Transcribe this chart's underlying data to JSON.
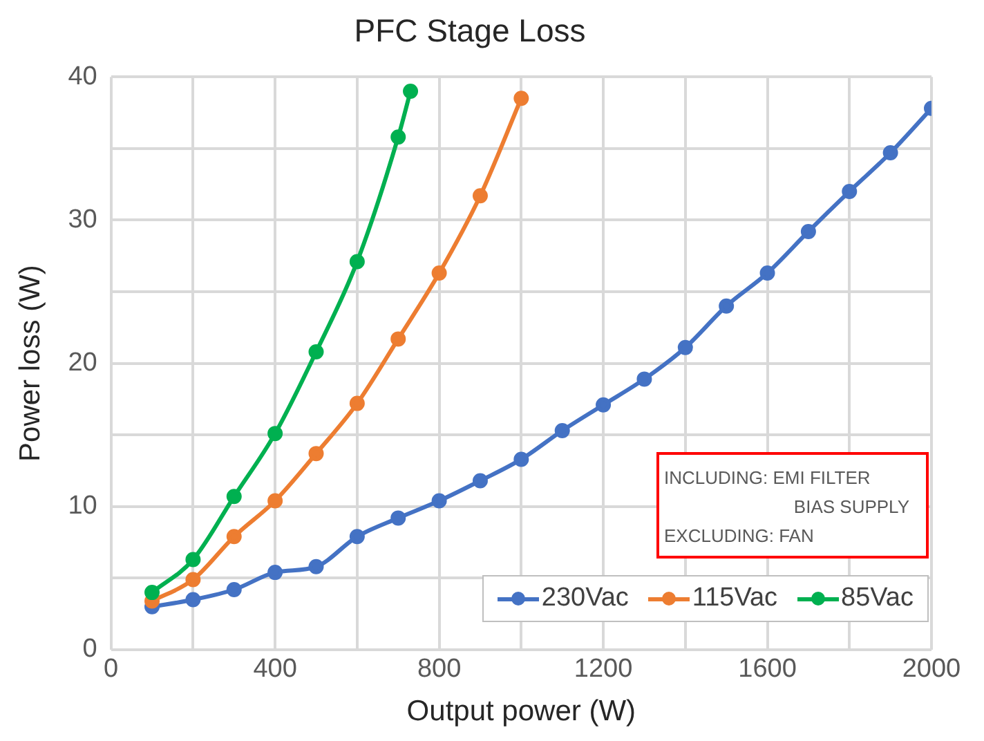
{
  "chart_data": {
    "type": "line",
    "title": "PFC Stage Loss",
    "xlabel": "Output power (W)",
    "ylabel": "Power loss (W)",
    "xlim": [
      0,
      2000
    ],
    "xticks": [
      0,
      {
        "value": 200,
        "label": null
      },
      400,
      {
        "value": 600,
        "label": null
      },
      800,
      {
        "value": 1000,
        "label": null
      },
      1200,
      {
        "value": 1400,
        "label": null
      },
      1600,
      {
        "value": 1800,
        "label": null
      },
      2000
    ],
    "ylim": [
      0,
      40
    ],
    "yticks": [
      0,
      {
        "value": 5,
        "label": null
      },
      10,
      {
        "value": 15,
        "label": null
      },
      20,
      {
        "value": 25,
        "label": null
      },
      30,
      {
        "value": 35,
        "label": null
      },
      40
    ],
    "grid": true,
    "legend": "bottom right",
    "marker": "circle",
    "line_style": "solid",
    "annotations": [
      "INCLUDING: EMI FILTER\n                          BIAS SUPPLY\nEXCLUDING: FAN"
    ],
    "series": [
      {
        "name": "230Vac",
        "color": "#4472c4",
        "x": [
          100,
          200,
          300,
          400,
          500,
          600,
          700,
          800,
          900,
          1000,
          1100,
          1200,
          1300,
          1400,
          1500,
          1600,
          1700,
          1800,
          1900,
          2000
        ],
        "values": [
          3.0,
          3.5,
          4.2,
          5.4,
          5.8,
          7.9,
          9.2,
          10.4,
          11.8,
          13.3,
          15.3,
          17.1,
          18.9,
          21.1,
          24.0,
          26.3,
          29.2,
          32.0,
          34.7,
          37.8
        ]
      },
      {
        "name": "115Vac",
        "color": "#ed7d31",
        "x": [
          100,
          200,
          300,
          400,
          500,
          600,
          700,
          800,
          900,
          1000
        ],
        "values": [
          3.4,
          4.9,
          7.9,
          10.4,
          13.7,
          17.2,
          21.7,
          26.3,
          31.7,
          38.5
        ]
      },
      {
        "name": "85Vac",
        "color": "#00b050",
        "x": [
          100,
          200,
          300,
          400,
          500,
          600,
          700,
          730
        ],
        "values": [
          4.0,
          6.3,
          10.7,
          15.1,
          20.8,
          27.1,
          35.8,
          39.0
        ]
      }
    ]
  }
}
